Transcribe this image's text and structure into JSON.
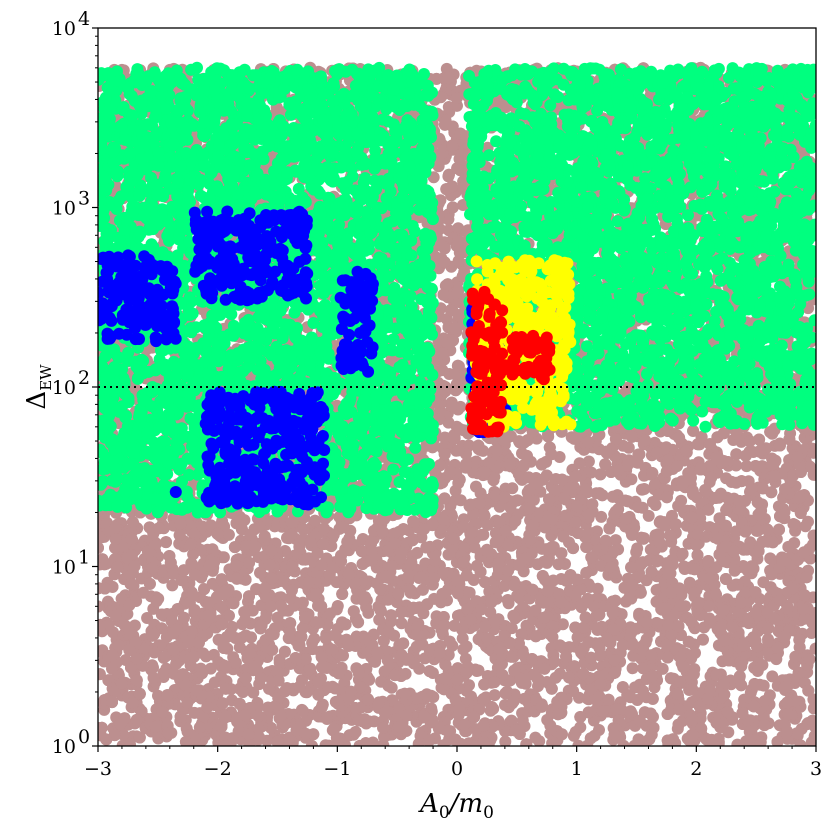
{
  "chart_data": {
    "type": "scatter",
    "xlabel": "A0/m0",
    "ylabel": "ΔEW",
    "xlim": [
      -3,
      3
    ],
    "ylim": [
      1,
      10000
    ],
    "y_scale": "log",
    "x_ticks": [
      -3,
      -2,
      -1,
      0,
      1,
      2,
      3
    ],
    "x_tick_labels": [
      "−3",
      "−2",
      "−1",
      "0",
      "1",
      "2",
      "3"
    ],
    "y_ticks": [
      1,
      10,
      100,
      1000,
      10000
    ],
    "y_tick_labels": [
      "10",
      "10",
      "10",
      "10",
      "10"
    ],
    "y_tick_exponents": [
      "0",
      "1",
      "2",
      "3",
      "4"
    ],
    "reference_line": {
      "y": 100,
      "style": "dotted"
    },
    "grid": false,
    "legend": "none",
    "series": [
      {
        "color": "#BC8F8F",
        "regions": [
          {
            "x": [
              -3,
              3
            ],
            "y": [
              1,
              6000
            ]
          }
        ],
        "description_points": [
          [
            2.6,
            3.8
          ],
          [
            2.3,
            4.6
          ],
          [
            2.9,
            12
          ],
          [
            2.7,
            6.5
          ],
          [
            1.5,
            4.5
          ],
          [
            1.3,
            5.5
          ],
          [
            2.8,
            7.5
          ]
        ]
      },
      {
        "color": "#00FF7F",
        "regions": [
          {
            "x": [
              -3,
              -0.2
            ],
            "y": [
              20,
              6000
            ]
          },
          {
            "x": [
              0.1,
              3
            ],
            "y": [
              60,
              6000
            ]
          }
        ]
      },
      {
        "color": "#0000FF",
        "regions": [
          {
            "x": [
              -3,
              -2.35
            ],
            "y": [
              180,
              550
            ]
          },
          {
            "x": [
              -2.2,
              -1.25
            ],
            "y": [
              300,
              950
            ]
          },
          {
            "x": [
              -0.98,
              -0.7
            ],
            "y": [
              120,
              450
            ]
          },
          {
            "x": [
              -2.1,
              -1.1
            ],
            "y": [
              22,
              95
            ]
          },
          {
            "x": [
              0.12,
              0.42
            ],
            "y": [
              55,
              330
            ]
          }
        ],
        "points": [
          [
            -2.35,
            26
          ]
        ]
      },
      {
        "color": "#FFFF00",
        "regions": [
          {
            "x": [
              0.15,
              0.95
            ],
            "y": [
              60,
              520
            ]
          }
        ]
      },
      {
        "color": "#FF0000",
        "regions": [
          {
            "x": [
              0.12,
              0.38
            ],
            "y": [
              55,
              350
            ]
          },
          {
            "x": [
              0.38,
              0.78
            ],
            "y": [
              110,
              195
            ]
          }
        ]
      }
    ]
  }
}
